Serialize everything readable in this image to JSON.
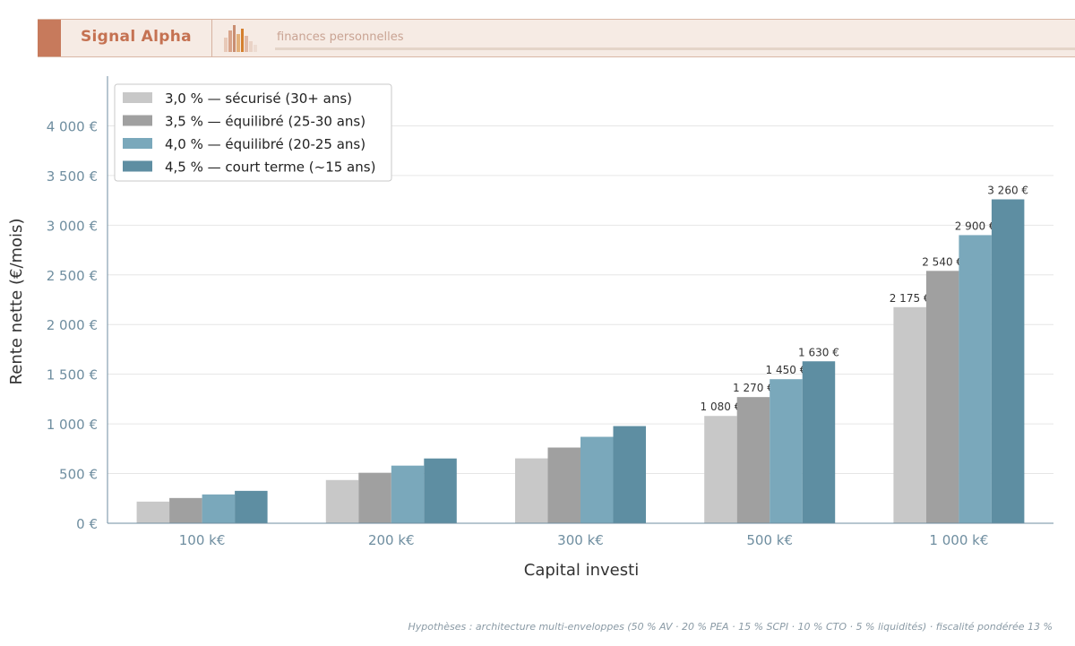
{
  "header": {
    "brand": "Signal Alpha",
    "tagline": "finances personnelles",
    "accent_color": "#c77a5c",
    "logo_icon": "bar-chart-logo-icon"
  },
  "chart_data": {
    "type": "bar",
    "title": "",
    "xlabel": "Capital investi",
    "ylabel": "Rente nette (€/mois)",
    "categories": [
      "100 k€",
      "200 k€",
      "300 k€",
      "500 k€",
      "1 000 k€"
    ],
    "ylim": [
      0,
      4500
    ],
    "yticks": [
      {
        "value": 0,
        "label": "0 €"
      },
      {
        "value": 500,
        "label": "500 €"
      },
      {
        "value": 1000,
        "label": "1 000 €"
      },
      {
        "value": 1500,
        "label": "1 500 €"
      },
      {
        "value": 2000,
        "label": "2 000 €"
      },
      {
        "value": 2500,
        "label": "2 500 €"
      },
      {
        "value": 3000,
        "label": "3 000 €"
      },
      {
        "value": 3500,
        "label": "3 500 €"
      },
      {
        "value": 4000,
        "label": "4 000 €"
      }
    ],
    "grid": true,
    "legend_position": "top-left",
    "series": [
      {
        "name": "3,0 % — sécurisé (30+ ans)",
        "color": "#c8c8c8",
        "values": [
          218,
          435,
          653,
          1080,
          2175
        ],
        "labels": [
          "",
          "",
          "",
          "1 080 €",
          "2 175 €"
        ]
      },
      {
        "name": "3,5 % — équilibré (25-30 ans)",
        "color": "#a0a0a0",
        "values": [
          254,
          508,
          762,
          1270,
          2540
        ],
        "labels": [
          "",
          "",
          "",
          "1 270 €",
          "2 540 €"
        ]
      },
      {
        "name": "4,0 % — équilibré (20-25 ans)",
        "color": "#7aa8bb",
        "values": [
          290,
          580,
          870,
          1450,
          2900
        ],
        "labels": [
          "",
          "",
          "",
          "1 450 €",
          "2 900 €"
        ]
      },
      {
        "name": "4,5 % — court terme (~15 ans)",
        "color": "#5e8ea2",
        "values": [
          326,
          652,
          978,
          1630,
          3260
        ],
        "labels": [
          "",
          "",
          "",
          "1 630 €",
          "3 260 €"
        ]
      }
    ]
  },
  "footnote": "Hypothèses : architecture multi-enveloppes (50 % AV · 20 % PEA · 15 % SCPI · 10 % CTO · 5 % liquidités) · fiscalité pondérée 13 %"
}
